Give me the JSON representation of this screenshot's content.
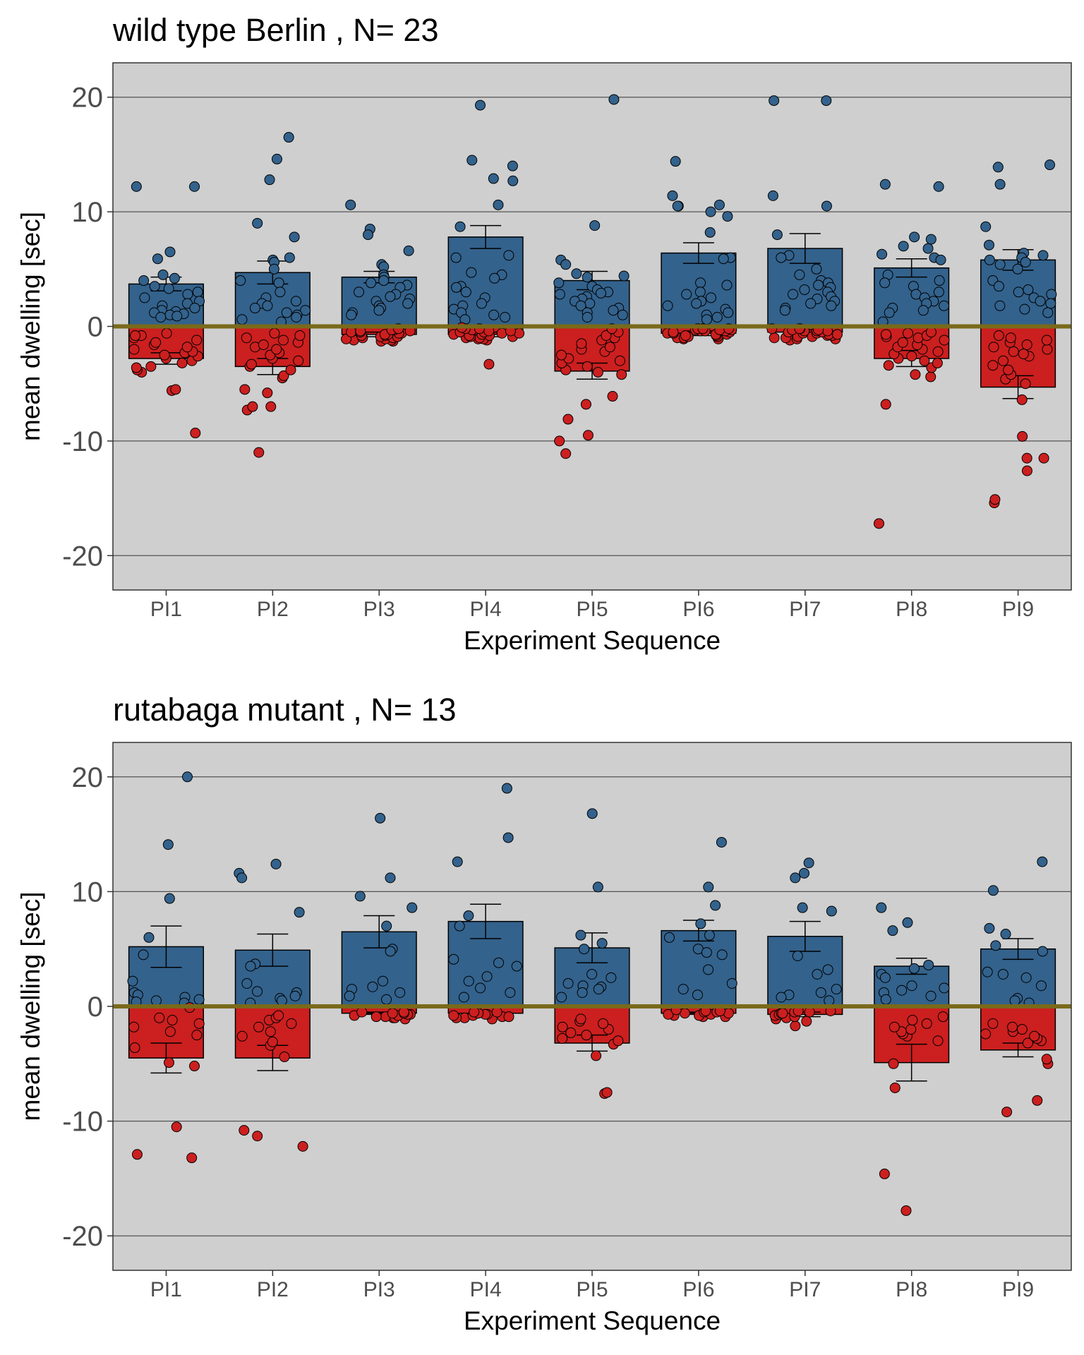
{
  "chart_data": [
    {
      "type": "bar",
      "title": "wild type Berlin , N= 23",
      "xlabel": "Experiment Sequence",
      "ylabel": "mean dwelling [sec]",
      "ylim": [
        -23,
        23
      ],
      "yticks": [
        -20,
        -10,
        0,
        10,
        20
      ],
      "grid": true,
      "categories": [
        "PI1",
        "PI2",
        "PI3",
        "PI4",
        "PI5",
        "PI6",
        "PI7",
        "PI8",
        "PI9"
      ],
      "series": [
        {
          "values": [
            3.7,
            4.7,
            4.3,
            7.8,
            4.0,
            6.4,
            6.8,
            5.1,
            5.8
          ],
          "errors": [
            0.6,
            1.0,
            0.5,
            1.0,
            0.8,
            0.9,
            1.3,
            0.8,
            0.9
          ],
          "color": "#33628c",
          "points": [
            [
              12.2,
              12.2,
              6.5,
              5.9,
              4.5,
              4.2,
              4.0,
              3.5,
              3.3,
              3.0,
              2.8,
              2.5,
              2.2,
              2.0,
              1.8,
              1.6,
              1.4,
              1.3,
              1.2,
              1.1,
              1.0,
              0.9,
              0.8
            ],
            [
              16.5,
              14.6,
              12.8,
              9.0,
              7.8,
              6.0,
              5.8,
              5.6,
              5.0,
              4.0,
              3.8,
              3.0,
              2.5,
              2.2,
              2.0,
              1.8,
              1.6,
              1.4,
              1.2,
              1.0,
              0.8,
              0.6,
              0.4
            ],
            [
              10.6,
              8.5,
              8.0,
              6.6,
              5.4,
              5.2,
              4.5,
              4.3,
              4.0,
              3.8,
              3.6,
              3.4,
              3.0,
              2.8,
              2.6,
              2.4,
              2.2,
              2.0,
              1.8,
              1.6,
              1.4,
              1.2,
              1.0
            ],
            [
              19.3,
              14.5,
              14.0,
              12.9,
              12.7,
              10.6,
              8.7,
              6.2,
              6.0,
              4.7,
              4.5,
              4.2,
              3.5,
              3.4,
              3.0,
              2.5,
              2.0,
              1.8,
              1.5,
              1.2,
              1.0,
              0.8,
              0.6
            ],
            [
              19.8,
              8.8,
              5.8,
              5.4,
              4.6,
              4.4,
              4.3,
              3.8,
              3.5,
              3.2,
              3.0,
              2.9,
              2.8,
              2.6,
              2.4,
              2.2,
              2.0,
              1.8,
              1.6,
              1.4,
              1.2,
              1.0,
              0.8
            ],
            [
              14.4,
              11.4,
              10.6,
              10.5,
              10.5,
              10.0,
              9.6,
              8.2,
              6.0,
              5.9,
              3.8,
              3.6,
              3.0,
              2.8,
              2.5,
              2.2,
              2.0,
              1.8,
              1.5,
              1.2,
              1.0,
              0.8,
              0.6
            ],
            [
              19.7,
              19.7,
              11.4,
              10.5,
              8.0,
              6.2,
              6.0,
              5.0,
              4.5,
              4.0,
              3.8,
              3.6,
              3.4,
              3.2,
              3.0,
              2.8,
              2.6,
              2.4,
              2.2,
              2.0,
              1.8,
              1.6,
              1.4
            ],
            [
              12.4,
              12.2,
              7.8,
              7.6,
              7.0,
              6.8,
              6.3,
              6.0,
              5.8,
              4.5,
              4.0,
              3.8,
              3.5,
              3.0,
              2.8,
              2.5,
              2.2,
              2.0,
              1.8,
              1.6,
              1.4,
              1.2,
              0.4
            ],
            [
              14.1,
              13.9,
              12.4,
              8.7,
              7.1,
              6.4,
              6.2,
              6.0,
              5.8,
              5.6,
              5.4,
              5.0,
              4.0,
              3.5,
              3.2,
              3.0,
              2.8,
              2.5,
              2.2,
              2.0,
              1.8,
              1.5,
              1.2
            ]
          ]
        },
        {
          "values": [
            -2.8,
            -3.5,
            -0.7,
            -0.7,
            -3.9,
            -0.6,
            -0.5,
            -2.8,
            -5.3
          ],
          "errors": [
            0.5,
            0.7,
            0.2,
            0.2,
            0.7,
            0.2,
            0.2,
            0.7,
            1.0
          ],
          "color": "#cc1f1f",
          "points": [
            [
              -9.3,
              -5.6,
              -5.5,
              -4.0,
              -3.8,
              -3.6,
              -3.5,
              -3.2,
              -3.0,
              -2.8,
              -2.6,
              -2.5,
              -2.3,
              -2.2,
              -2.0,
              -1.8,
              -1.6,
              -1.4,
              -1.2,
              -1.0,
              -0.8,
              -0.8,
              -0.6
            ],
            [
              -11.0,
              -7.3,
              -7.0,
              -7.0,
              -5.8,
              -5.5,
              -4.5,
              -4.3,
              -3.8,
              -3.5,
              -3.3,
              -3.0,
              -2.8,
              -2.5,
              -2.3,
              -2.0,
              -1.8,
              -1.6,
              -1.4,
              -1.2,
              -1.0,
              -0.8,
              -0.6
            ],
            [
              -1.3,
              -1.3,
              -1.2,
              -1.2,
              -1.1,
              -1.1,
              -1.0,
              -1.0,
              -0.9,
              -0.9,
              -0.8,
              -0.8,
              -0.7,
              -0.7,
              -0.6,
              -0.6,
              -0.5,
              -0.5,
              -0.4,
              -0.4,
              -0.3,
              -0.3,
              -0.2
            ],
            [
              -3.3,
              -1.2,
              -1.1,
              -1.1,
              -1.0,
              -1.0,
              -0.9,
              -0.9,
              -0.8,
              -0.8,
              -0.7,
              -0.7,
              -0.6,
              -0.6,
              -0.5,
              -0.5,
              -0.4,
              -0.4,
              -0.3,
              -0.3,
              -0.2,
              -0.2,
              -0.1
            ],
            [
              -11.1,
              -10.0,
              -9.5,
              -8.1,
              -6.8,
              -6.1,
              -4.2,
              -4.0,
              -3.8,
              -3.5,
              -3.2,
              -3.0,
              -2.8,
              -2.5,
              -2.2,
              -2.0,
              -1.8,
              -1.5,
              -1.2,
              -1.0,
              -0.8,
              -0.5,
              -0.2
            ],
            [
              -1.1,
              -1.1,
              -1.0,
              -1.0,
              -0.9,
              -0.9,
              -0.8,
              -0.8,
              -0.7,
              -0.7,
              -0.6,
              -0.6,
              -0.5,
              -0.5,
              -0.4,
              -0.4,
              -0.4,
              -0.3,
              -0.3,
              -0.3,
              -0.2,
              -0.2,
              -0.2
            ],
            [
              -1.2,
              -1.1,
              -1.1,
              -1.0,
              -1.0,
              -0.9,
              -0.9,
              -0.8,
              -0.8,
              -0.7,
              -0.7,
              -0.6,
              -0.6,
              -0.5,
              -0.5,
              -0.4,
              -0.4,
              -0.4,
              -0.3,
              -0.3,
              -0.2,
              -0.2,
              -0.2
            ],
            [
              -17.2,
              -6.8,
              -4.4,
              -4.2,
              -3.6,
              -3.4,
              -3.2,
              -3.0,
              -2.8,
              -2.6,
              -2.4,
              -2.2,
              -2.0,
              -1.8,
              -1.6,
              -1.4,
              -1.2,
              -1.0,
              -0.9,
              -0.8,
              -0.7,
              -0.6,
              -0.5
            ],
            [
              -15.4,
              -15.1,
              -12.6,
              -11.5,
              -11.5,
              -9.6,
              -6.4,
              -5.0,
              -4.6,
              -4.2,
              -3.8,
              -3.4,
              -3.0,
              -2.6,
              -2.4,
              -2.2,
              -2.0,
              -1.8,
              -1.6,
              -1.4,
              -1.2,
              -1.0,
              -0.8
            ]
          ]
        }
      ]
    },
    {
      "type": "bar",
      "title": "rutabaga mutant , N= 13",
      "xlabel": "Experiment Sequence",
      "ylabel": "mean dwelling [sec]",
      "ylim": [
        -23,
        23
      ],
      "yticks": [
        -20,
        -10,
        0,
        10,
        20
      ],
      "grid": true,
      "categories": [
        "PI1",
        "PI2",
        "PI3",
        "PI4",
        "PI5",
        "PI6",
        "PI7",
        "PI8",
        "PI9"
      ],
      "series": [
        {
          "values": [
            5.2,
            4.9,
            6.5,
            7.4,
            5.1,
            6.6,
            6.1,
            3.5,
            5.0
          ],
          "errors": [
            1.8,
            1.4,
            1.4,
            1.5,
            1.3,
            0.9,
            1.3,
            0.7,
            0.9
          ],
          "color": "#33628c",
          "points": [
            [
              20.0,
              14.1,
              9.4,
              6.0,
              4.5,
              2.2,
              1.2,
              1.0,
              0.8,
              0.6,
              0.5,
              0.4,
              0.3
            ],
            [
              12.4,
              11.6,
              11.2,
              8.2,
              3.7,
              3.5,
              2.0,
              1.3,
              1.2,
              0.9,
              0.7,
              0.5,
              0.3
            ],
            [
              16.4,
              11.2,
              9.6,
              8.6,
              7.0,
              5.0,
              4.8,
              2.2,
              1.7,
              1.5,
              1.2,
              0.9,
              0.6
            ],
            [
              19.0,
              14.7,
              12.6,
              7.9,
              7.0,
              4.1,
              3.8,
              3.5,
              2.6,
              2.2,
              1.6,
              1.2,
              0.8
            ],
            [
              16.8,
              10.4,
              6.2,
              5.5,
              5.0,
              2.8,
              2.5,
              2.0,
              1.8,
              1.7,
              1.5,
              1.2,
              0.8
            ],
            [
              14.3,
              10.4,
              8.8,
              7.2,
              6.2,
              6.0,
              5.0,
              4.7,
              4.5,
              3.2,
              2.0,
              1.5,
              1.0
            ],
            [
              12.5,
              11.6,
              11.2,
              8.6,
              8.3,
              4.4,
              3.2,
              2.8,
              1.5,
              1.2,
              1.0,
              0.8,
              0.5
            ],
            [
              8.6,
              7.3,
              6.6,
              3.6,
              3.3,
              2.8,
              2.5,
              1.8,
              1.6,
              1.4,
              1.2,
              0.9,
              0.6
            ],
            [
              12.6,
              10.1,
              6.8,
              6.3,
              5.3,
              4.8,
              3.0,
              2.8,
              2.5,
              1.8,
              0.7,
              0.5,
              0.3
            ]
          ]
        },
        {
          "values": [
            -4.5,
            -4.5,
            -0.6,
            -0.6,
            -3.2,
            -0.6,
            -0.7,
            -4.9,
            -3.8
          ],
          "errors": [
            1.3,
            1.1,
            0.1,
            0.1,
            0.7,
            0.1,
            0.2,
            1.6,
            0.6
          ],
          "color": "#cc1f1f",
          "points": [
            [
              -13.2,
              -12.9,
              -10.5,
              -5.2,
              -4.9,
              -3.6,
              -2.5,
              -2.2,
              -1.8,
              -1.5,
              -1.2,
              -1.0,
              -0.1
            ],
            [
              -12.2,
              -11.3,
              -10.8,
              -4.4,
              -3.4,
              -3.1,
              -2.6,
              -2.2,
              -1.8,
              -1.5,
              -1.2,
              -1.0,
              -0.8
            ],
            [
              -1.1,
              -1.0,
              -1.0,
              -0.9,
              -0.9,
              -0.8,
              -0.8,
              -0.7,
              -0.7,
              -0.6,
              -0.6,
              -0.5,
              -0.5
            ],
            [
              -1.1,
              -1.0,
              -1.0,
              -0.9,
              -0.9,
              -0.8,
              -0.8,
              -0.7,
              -0.7,
              -0.6,
              -0.6,
              -0.5,
              -0.5
            ],
            [
              -7.6,
              -7.5,
              -4.3,
              -3.3,
              -3.0,
              -2.8,
              -2.5,
              -2.3,
              -2.0,
              -1.8,
              -1.5,
              -1.3,
              -1.1
            ],
            [
              -0.9,
              -0.9,
              -0.8,
              -0.8,
              -0.7,
              -0.7,
              -0.6,
              -0.6,
              -0.5,
              -0.5,
              -0.4,
              -0.4,
              -0.3
            ],
            [
              -1.7,
              -1.3,
              -1.1,
              -1.0,
              -0.9,
              -0.8,
              -0.7,
              -0.6,
              -0.6,
              -0.5,
              -0.5,
              -0.4,
              -0.4
            ],
            [
              -17.8,
              -14.6,
              -7.1,
              -5.0,
              -3.0,
              -2.6,
              -2.4,
              -2.2,
              -2.0,
              -1.8,
              -1.5,
              -1.2,
              -0.9
            ],
            [
              -9.2,
              -8.2,
              -5.0,
              -4.6,
              -3.2,
              -3.0,
              -2.8,
              -2.6,
              -2.4,
              -2.2,
              -2.0,
              -1.8,
              -1.5
            ]
          ]
        }
      ]
    }
  ],
  "colors": {
    "panel_background": "#cfcfcf",
    "gridline": "#555555",
    "zero_line": "#7a6a1a",
    "bar_outline": "#000000",
    "axis_text": "#4d4d4d",
    "title_text": "#000000"
  }
}
